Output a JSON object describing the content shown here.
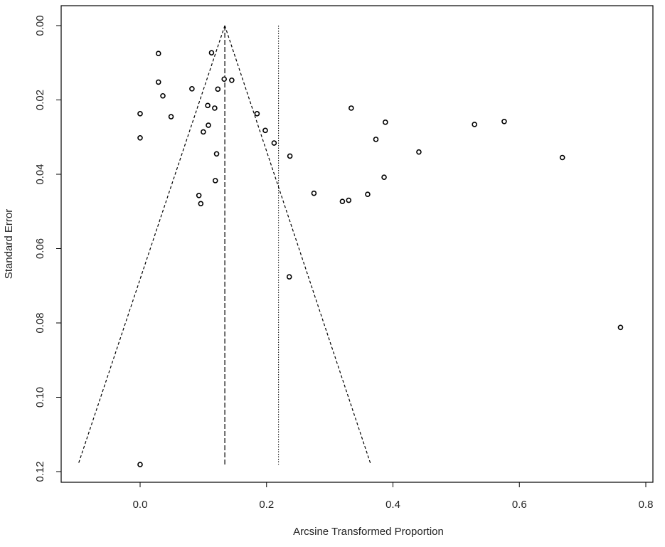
{
  "chart_data": {
    "type": "scatter",
    "subtype": "funnel-plot",
    "title": "",
    "xlabel": "Arcsine Transformed Proportion",
    "ylabel": "Standard Error",
    "xlim": [
      -0.13,
      0.81
    ],
    "ylim": [
      0,
      0.122
    ],
    "y_inverted": true,
    "grid": false,
    "x_ticks": [
      0.0,
      0.2,
      0.4,
      0.6,
      0.8
    ],
    "x_tick_labels": [
      "0.0",
      "0.2",
      "0.4",
      "0.6",
      "0.8"
    ],
    "y_ticks": [
      0.0,
      0.02,
      0.04,
      0.06,
      0.08,
      0.1,
      0.12
    ],
    "y_tick_labels": [
      "0.00",
      "0.02",
      "0.04",
      "0.06",
      "0.08",
      "0.10",
      "0.12"
    ],
    "points": [
      {
        "x": 0.029,
        "y": 0.0075
      },
      {
        "x": 0.113,
        "y": 0.0073
      },
      {
        "x": 0.029,
        "y": 0.0152
      },
      {
        "x": 0.133,
        "y": 0.0144
      },
      {
        "x": 0.145,
        "y": 0.0147
      },
      {
        "x": 0.082,
        "y": 0.017
      },
      {
        "x": 0.123,
        "y": 0.0171
      },
      {
        "x": 0.036,
        "y": 0.0189
      },
      {
        "x": 0.107,
        "y": 0.0215
      },
      {
        "x": 0.118,
        "y": 0.0222
      },
      {
        "x": 0.334,
        "y": 0.0222
      },
      {
        "x": 0.0,
        "y": 0.0237
      },
      {
        "x": 0.185,
        "y": 0.0237
      },
      {
        "x": 0.049,
        "y": 0.0245
      },
      {
        "x": 0.388,
        "y": 0.026
      },
      {
        "x": 0.576,
        "y": 0.0258
      },
      {
        "x": 0.529,
        "y": 0.0266
      },
      {
        "x": 0.108,
        "y": 0.0268
      },
      {
        "x": 0.198,
        "y": 0.0282
      },
      {
        "x": 0.1,
        "y": 0.0286
      },
      {
        "x": 0.0,
        "y": 0.0302
      },
      {
        "x": 0.373,
        "y": 0.0306
      },
      {
        "x": 0.212,
        "y": 0.0316
      },
      {
        "x": 0.441,
        "y": 0.034
      },
      {
        "x": 0.121,
        "y": 0.0345
      },
      {
        "x": 0.237,
        "y": 0.0351
      },
      {
        "x": 0.668,
        "y": 0.0355
      },
      {
        "x": 0.386,
        "y": 0.0408
      },
      {
        "x": 0.119,
        "y": 0.0417
      },
      {
        "x": 0.275,
        "y": 0.0451
      },
      {
        "x": 0.36,
        "y": 0.0454
      },
      {
        "x": 0.093,
        "y": 0.0457
      },
      {
        "x": 0.33,
        "y": 0.047
      },
      {
        "x": 0.32,
        "y": 0.0473
      },
      {
        "x": 0.096,
        "y": 0.0479
      },
      {
        "x": 0.236,
        "y": 0.0676
      },
      {
        "x": 0.76,
        "y": 0.0812
      },
      {
        "x": 0.0,
        "y": 0.1181
      }
    ],
    "reference_lines": {
      "pooled_estimate": 0.134,
      "null_line": 0.219
    },
    "funnel": {
      "apex": {
        "x": 0.134,
        "y": 0.0
      },
      "left_base": {
        "x": -0.098,
        "y": 0.1181
      },
      "right_base": {
        "x": 0.365,
        "y": 0.1181
      }
    }
  }
}
